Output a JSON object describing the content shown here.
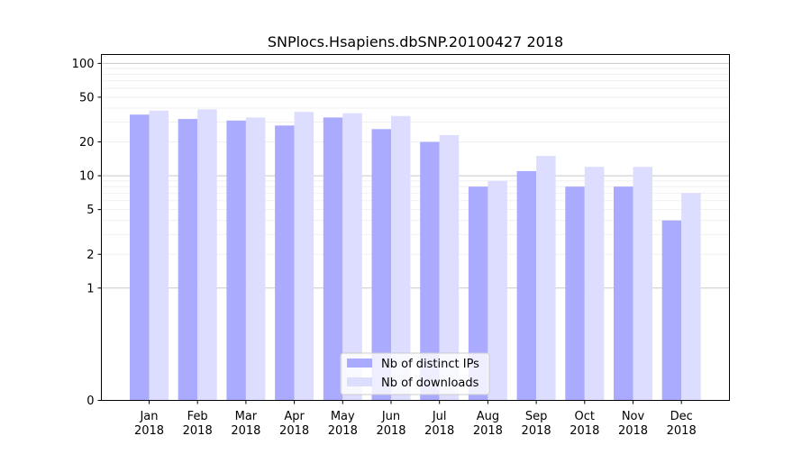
{
  "chart_data": {
    "type": "bar",
    "title": "SNPlocs.Hsapiens.dbSNP.20100427 2018",
    "xlabel": "",
    "ylabel": "",
    "yscale": "symlog",
    "ylim": [
      0,
      120
    ],
    "yticks": [
      0,
      1,
      2,
      5,
      10,
      20,
      50,
      100
    ],
    "grid": "horizontal",
    "legend_position": "bottom-center",
    "categories": [
      [
        "Jan",
        "2018"
      ],
      [
        "Feb",
        "2018"
      ],
      [
        "Mar",
        "2018"
      ],
      [
        "Apr",
        "2018"
      ],
      [
        "May",
        "2018"
      ],
      [
        "Jun",
        "2018"
      ],
      [
        "Jul",
        "2018"
      ],
      [
        "Aug",
        "2018"
      ],
      [
        "Sep",
        "2018"
      ],
      [
        "Oct",
        "2018"
      ],
      [
        "Nov",
        "2018"
      ],
      [
        "Dec",
        "2018"
      ]
    ],
    "series": [
      {
        "name": "Nb of distinct IPs",
        "color": "#aaaaff",
        "values": [
          35,
          32,
          31,
          28,
          33,
          26,
          20,
          8,
          11,
          8,
          8,
          4
        ]
      },
      {
        "name": "Nb of downloads",
        "color": "#ddddff",
        "values": [
          38,
          39,
          33,
          37,
          36,
          34,
          23,
          9,
          15,
          12,
          12,
          7
        ]
      }
    ]
  }
}
